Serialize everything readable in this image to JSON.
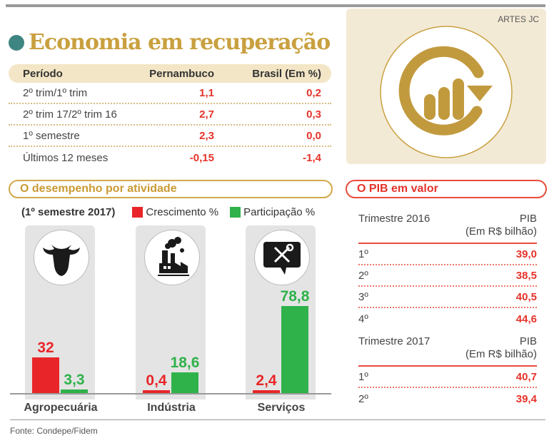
{
  "credit": "ARTES JC",
  "title": "Economia em recuperação",
  "colors": {
    "gold": "#c9a03f",
    "teal": "#3f8582",
    "red": "#e8262a",
    "green": "#2fb24a"
  },
  "summary_table": {
    "headers": [
      "Período",
      "Pernambuco",
      "Brasil (Em %)"
    ],
    "rows": [
      {
        "period": "2º trim/1º trim",
        "pernambuco": "1,1",
        "brasil": "0,2"
      },
      {
        "period": "2º trim 17/2º trim 16",
        "pernambuco": "2,7",
        "brasil": "0,3"
      },
      {
        "period": "1º semestre",
        "pernambuco": "2,3",
        "brasil": "0,0"
      },
      {
        "period": "Últimos 12 meses",
        "pernambuco": "-0,15",
        "brasil": "-1,4"
      }
    ]
  },
  "activity_section": {
    "title": "O desempenho por atividade",
    "subtitle": "(1º semestre 2017)",
    "legend": [
      "Crescimento %",
      "Participação %"
    ]
  },
  "chart_data": {
    "type": "bar",
    "title": "O desempenho por atividade",
    "subtitle": "(1º semestre 2017)",
    "categories": [
      "Agropecuária",
      "Indústria",
      "Serviços"
    ],
    "category_icons": [
      "cow-icon",
      "factory-icon",
      "tools-icon"
    ],
    "series": [
      {
        "name": "Crescimento %",
        "color": "#e8262a",
        "values": [
          32,
          0.4,
          2.4
        ],
        "labels": [
          "32",
          "0,4",
          "2,4"
        ]
      },
      {
        "name": "Participação %",
        "color": "#2fb24a",
        "values": [
          3.3,
          18.6,
          78.8
        ],
        "labels": [
          "3,3",
          "18,6",
          "78,8"
        ]
      }
    ],
    "xlabel": "",
    "ylabel": "",
    "ylim": [
      0,
      80
    ],
    "grid": false,
    "legend_position": "top"
  },
  "pib_section": {
    "title": "O PIB em valor",
    "groups": [
      {
        "header": "Trimestre 2016",
        "value_header_line1": "PIB",
        "value_header_line2": "(Em R$ bilhão)",
        "rows": [
          {
            "quarter": "1º",
            "value": "39,0"
          },
          {
            "quarter": "2º",
            "value": "38,5"
          },
          {
            "quarter": "3º",
            "value": "40,5"
          },
          {
            "quarter": "4º",
            "value": "44,6"
          }
        ]
      },
      {
        "header": "Trimestre 2017",
        "value_header_line1": "PIB",
        "value_header_line2": "(Em R$ bilhão)",
        "rows": [
          {
            "quarter": "1º",
            "value": "40,7"
          },
          {
            "quarter": "2º",
            "value": "39,4"
          }
        ]
      }
    ]
  },
  "source": "Fonte: Condepe/Fidem"
}
